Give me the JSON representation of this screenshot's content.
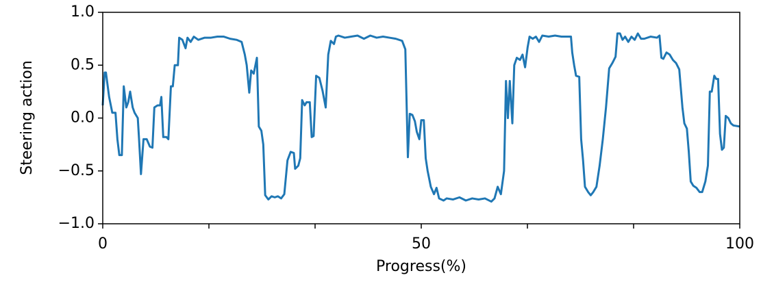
{
  "chart_data": {
    "type": "line",
    "xlabel": "Progress(%)",
    "ylabel": "Steering action",
    "xlim": [
      0,
      100
    ],
    "ylim": [
      -1,
      1
    ],
    "xticks": [
      0,
      50,
      100
    ],
    "xminorticks": [
      16.667,
      33.333,
      66.667,
      83.333
    ],
    "yticks": [
      {
        "value": -1,
        "label": "−1.0"
      },
      {
        "value": -0.5,
        "label": "−0.5"
      },
      {
        "value": 0,
        "label": "0.0"
      },
      0.5,
      {
        "value": 1,
        "label": "1.0"
      }
    ],
    "series": [
      {
        "color": "#1f77b4",
        "x": [
          0,
          0.3,
          0.5,
          1,
          1.5,
          2,
          2.3,
          2.6,
          3,
          3.3,
          3.7,
          4,
          4.3,
          4.7,
          5,
          5.5,
          5.7,
          6,
          6.4,
          6.9,
          7.4,
          7.8,
          8.1,
          8.6,
          9,
          9.2,
          9.5,
          10,
          10.3,
          10.7,
          11,
          11.3,
          11.8,
          12,
          12.5,
          13,
          13.3,
          13.8,
          14.3,
          15,
          16,
          17,
          18,
          19,
          20,
          21,
          21.8,
          22.3,
          22.6,
          23,
          23.3,
          23.7,
          24.2,
          24.5,
          24.9,
          25.2,
          25.5,
          26,
          26.5,
          27,
          27.5,
          28,
          28.5,
          29,
          29.5,
          30,
          30.2,
          30.7,
          31,
          31.3,
          31.7,
          32,
          32.5,
          32.8,
          33.1,
          33.5,
          34,
          34.5,
          35,
          35.4,
          35.8,
          36.3,
          36.6,
          37,
          38,
          39,
          40,
          41,
          42,
          43,
          44,
          45,
          46,
          47,
          47.5,
          47.9,
          48.2,
          48.6,
          49,
          49.3,
          49.7,
          50,
          50.4,
          50.7,
          51,
          51.5,
          52,
          52.4,
          52.8,
          53.5,
          54,
          55,
          56,
          57,
          58,
          59,
          60,
          61,
          61.5,
          62,
          62.5,
          63,
          63.3,
          63.6,
          63.9,
          64.3,
          64.6,
          65,
          65.5,
          65.9,
          66.3,
          66.7,
          67,
          67.5,
          68,
          68.5,
          69,
          70,
          71,
          72,
          73,
          73.5,
          73.7,
          74,
          74.3,
          74.8,
          75.1,
          75.4,
          75.7,
          76.2,
          76.6,
          77,
          77.5,
          78,
          78.5,
          79,
          79.5,
          80,
          80.5,
          80.8,
          81.2,
          81.6,
          82,
          82.5,
          83,
          83.5,
          84,
          84.5,
          85,
          86,
          87,
          87.4,
          87.7,
          88,
          88.5,
          89,
          89.5,
          90,
          90.5,
          91,
          91.3,
          91.7,
          92,
          92.3,
          92.7,
          93.2,
          93.7,
          94.1,
          94.6,
          95,
          95.3,
          95.6,
          96,
          96.3,
          96.6,
          96.9,
          97.2,
          97.5,
          97.8,
          98.2,
          98.6,
          99,
          100
        ],
        "values": [
          0.12,
          0.43,
          0.43,
          0.2,
          0.05,
          0.05,
          -0.2,
          -0.35,
          -0.35,
          0.3,
          0.1,
          0.15,
          0.25,
          0.1,
          0.05,
          0.0,
          -0.2,
          -0.53,
          -0.2,
          -0.2,
          -0.27,
          -0.28,
          0.1,
          0.12,
          0.12,
          0.2,
          -0.18,
          -0.18,
          -0.2,
          0.3,
          0.3,
          0.5,
          0.5,
          0.76,
          0.74,
          0.66,
          0.76,
          0.72,
          0.77,
          0.74,
          0.76,
          0.76,
          0.77,
          0.77,
          0.75,
          0.74,
          0.72,
          0.6,
          0.5,
          0.24,
          0.45,
          0.42,
          0.57,
          -0.08,
          -0.12,
          -0.25,
          -0.73,
          -0.77,
          -0.74,
          -0.75,
          -0.74,
          -0.76,
          -0.72,
          -0.4,
          -0.32,
          -0.33,
          -0.48,
          -0.45,
          -0.38,
          0.17,
          0.12,
          0.15,
          0.15,
          -0.18,
          -0.17,
          0.4,
          0.38,
          0.26,
          0.1,
          0.6,
          0.73,
          0.7,
          0.77,
          0.78,
          0.76,
          0.77,
          0.78,
          0.75,
          0.78,
          0.76,
          0.77,
          0.76,
          0.75,
          0.73,
          0.65,
          -0.37,
          0.04,
          0.03,
          -0.03,
          -0.13,
          -0.2,
          -0.02,
          -0.02,
          -0.38,
          -0.5,
          -0.65,
          -0.72,
          -0.66,
          -0.76,
          -0.78,
          -0.76,
          -0.77,
          -0.75,
          -0.78,
          -0.76,
          -0.77,
          -0.76,
          -0.79,
          -0.76,
          -0.65,
          -0.72,
          -0.5,
          0.35,
          0.0,
          0.35,
          -0.05,
          0.5,
          0.57,
          0.55,
          0.6,
          0.48,
          0.67,
          0.77,
          0.75,
          0.77,
          0.72,
          0.78,
          0.77,
          0.78,
          0.77,
          0.77,
          0.77,
          0.62,
          0.5,
          0.4,
          0.39,
          -0.2,
          -0.4,
          -0.65,
          -0.7,
          -0.73,
          -0.7,
          -0.65,
          -0.45,
          -0.2,
          0.1,
          0.47,
          0.52,
          0.58,
          0.8,
          0.8,
          0.74,
          0.77,
          0.72,
          0.77,
          0.74,
          0.8,
          0.75,
          0.75,
          0.77,
          0.76,
          0.78,
          0.57,
          0.56,
          0.62,
          0.6,
          0.55,
          0.52,
          0.46,
          0.1,
          -0.05,
          -0.1,
          -0.32,
          -0.6,
          -0.64,
          -0.66,
          -0.7,
          -0.7,
          -0.6,
          -0.45,
          0.25,
          0.25,
          0.4,
          0.37,
          0.37,
          -0.15,
          -0.3,
          -0.28,
          0.02,
          0.0,
          -0.05,
          -0.07,
          -0.08
        ]
      }
    ]
  }
}
